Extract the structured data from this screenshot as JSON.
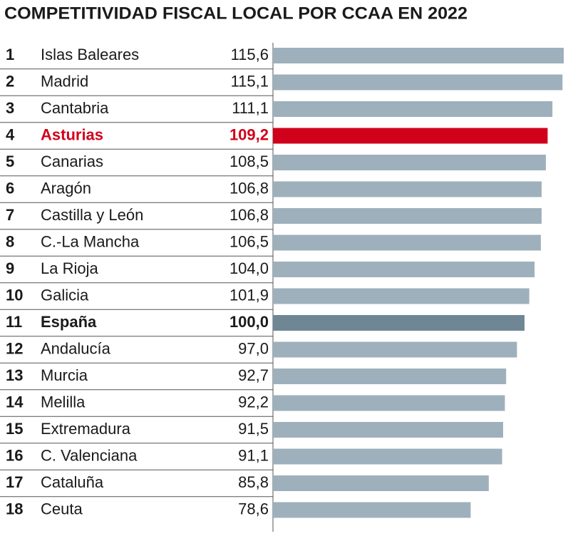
{
  "chart_data": {
    "type": "bar",
    "orientation": "horizontal",
    "title": "COMPETITIVIDAD FISCAL LOCAL POR CCAA EN 2022",
    "ranks": [
      1,
      2,
      3,
      4,
      5,
      6,
      7,
      8,
      9,
      10,
      11,
      12,
      13,
      14,
      15,
      16,
      17,
      18
    ],
    "categories": [
      "Islas Baleares",
      "Madrid",
      "Cantabria",
      "Asturias",
      "Canarias",
      "Aragón",
      "Castilla y León",
      "C.-La Mancha",
      "La Rioja",
      "Galicia",
      "España",
      "Andalucía",
      "Murcia",
      "Melilla",
      "Extremadura",
      "C. Valenciana",
      "Cataluña",
      "Ceuta"
    ],
    "values": [
      115.6,
      115.1,
      111.1,
      109.2,
      108.5,
      106.8,
      106.8,
      106.5,
      104.0,
      101.9,
      100.0,
      97.0,
      92.7,
      92.2,
      91.5,
      91.1,
      85.8,
      78.6
    ],
    "value_labels": [
      "115,6",
      "115,1",
      "111,1",
      "109,2",
      "108,5",
      "106,8",
      "106,8",
      "106,5",
      "104,0",
      "101,9",
      "100,0",
      "97,0",
      "92,7",
      "92,2",
      "91,5",
      "91,1",
      "85,8",
      "78,6"
    ],
    "color": "#9eb0bb",
    "colors": [
      "#9eb0bb",
      "#9eb0bb",
      "#9eb0bb",
      "#d0021b",
      "#9eb0bb",
      "#9eb0bb",
      "#9eb0bb",
      "#9eb0bb",
      "#9eb0bb",
      "#9eb0bb",
      "#6f8795",
      "#9eb0bb",
      "#9eb0bb",
      "#9eb0bb",
      "#9eb0bb",
      "#9eb0bb",
      "#9eb0bb",
      "#9eb0bb"
    ]
  }
}
